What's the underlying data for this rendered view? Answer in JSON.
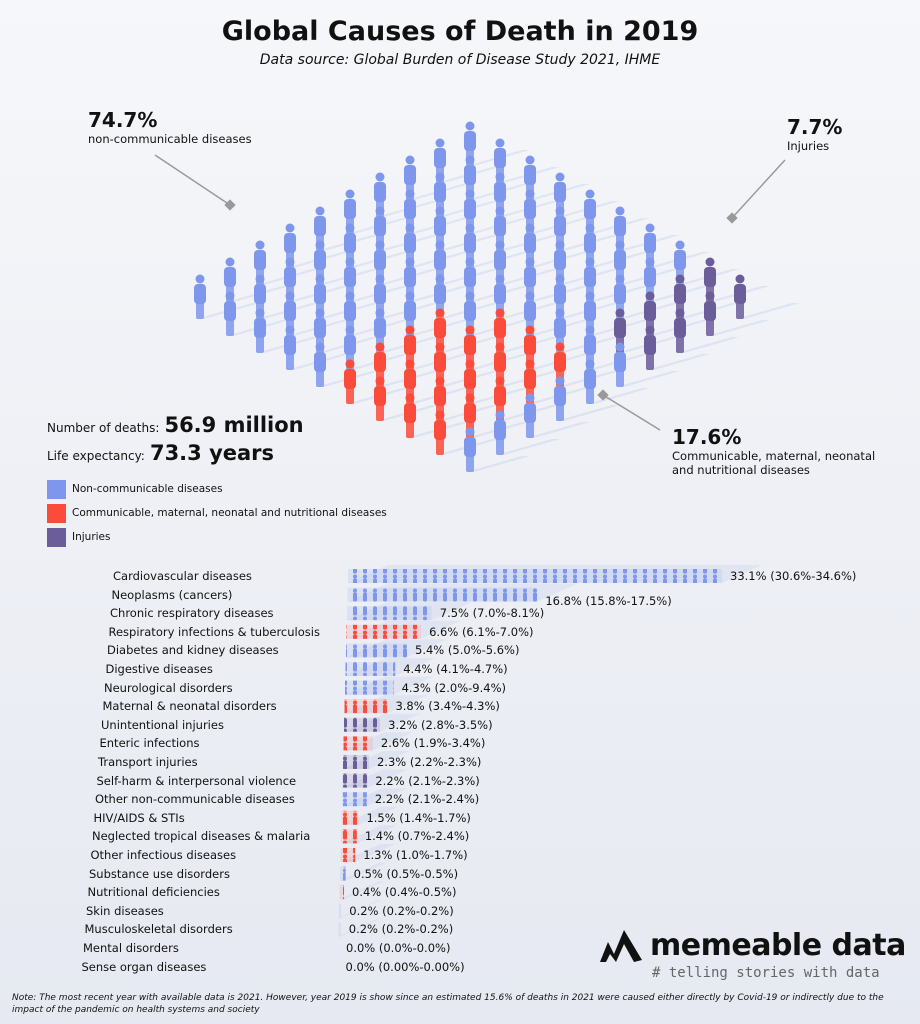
{
  "header": {
    "title": "Global Causes of Death in 2019",
    "subtitle": "Data source: Global Burden of Disease Study 2021, IHME"
  },
  "callouts": {
    "ncd": {
      "percent": "74.7%",
      "label": "non-communicable diseases"
    },
    "injuries": {
      "percent": "7.7%",
      "label": "Injuries"
    },
    "communicable": {
      "percent": "17.6%",
      "label_line1": "Communicable, maternal, neonatal",
      "label_line2": "and nutritional diseases"
    }
  },
  "stats": {
    "deaths_label": "Number of deaths:",
    "deaths_value": "56.9 million",
    "life_label": "Life expectancy:",
    "life_value": "73.3 years"
  },
  "colors": {
    "ncd": "#7e97ec",
    "communicable": "#fb4b3a",
    "injuries": "#6b5c9a"
  },
  "legend": [
    {
      "key": "ncd",
      "label": "Non-communicable diseases"
    },
    {
      "key": "communicable",
      "label": "Communicable, maternal, neonatal and nutritional diseases"
    },
    {
      "key": "injuries",
      "label": "Injuries"
    }
  ],
  "chart_data": [
    {
      "type": "pictogram",
      "description_values": "share of deaths by group",
      "categories": [
        "Non-communicable diseases",
        "Communicable, maternal, neonatal and nutritional diseases",
        "Injuries"
      ],
      "values": [
        74.7,
        17.6,
        7.7
      ]
    },
    {
      "type": "bar",
      "orientation": "horizontal",
      "rows": [
        {
          "label": "Cardiovascular diseases",
          "value": 33.1,
          "text": "33.1% (30.6%-34.6%)",
          "group": "ncd"
        },
        {
          "label": "Neoplasms (cancers)",
          "value": 16.8,
          "text": "16.8% (15.8%-17.5%)",
          "group": "ncd"
        },
        {
          "label": "Chronic respiratory diseases",
          "value": 7.5,
          "text": "7.5% (7.0%-8.1%)",
          "group": "ncd"
        },
        {
          "label": "Respiratory infections & tuberculosis",
          "value": 6.6,
          "text": "6.6% (6.1%-7.0%)",
          "group": "communicable"
        },
        {
          "label": "Diabetes and kidney diseases",
          "value": 5.4,
          "text": "5.4% (5.0%-5.6%)",
          "group": "ncd"
        },
        {
          "label": "Digestive diseases",
          "value": 4.4,
          "text": "4.4% (4.1%-4.7%)",
          "group": "ncd"
        },
        {
          "label": "Neurological disorders",
          "value": 4.3,
          "text": "4.3% (2.0%-9.4%)",
          "group": "ncd"
        },
        {
          "label": "Maternal & neonatal disorders",
          "value": 3.8,
          "text": "3.8% (3.4%-4.3%)",
          "group": "communicable"
        },
        {
          "label": "Unintentional injuries",
          "value": 3.2,
          "text": "3.2% (2.8%-3.5%)",
          "group": "injuries"
        },
        {
          "label": "Enteric infections",
          "value": 2.6,
          "text": "2.6% (1.9%-3.4%)",
          "group": "communicable"
        },
        {
          "label": "Transport injuries",
          "value": 2.3,
          "text": "2.3% (2.2%-2.3%)",
          "group": "injuries"
        },
        {
          "label": "Self-harm & interpersonal violence",
          "value": 2.2,
          "text": "2.2% (2.1%-2.3%)",
          "group": "injuries"
        },
        {
          "label": "Other non-communicable diseases",
          "value": 2.2,
          "text": "2.2% (2.1%-2.4%)",
          "group": "ncd"
        },
        {
          "label": "HIV/AIDS & STIs",
          "value": 1.5,
          "text": "1.5% (1.4%-1.7%)",
          "group": "communicable"
        },
        {
          "label": "Neglected tropical diseases & malaria",
          "value": 1.4,
          "text": "1.4% (0.7%-2.4%)",
          "group": "communicable"
        },
        {
          "label": "Other infectious diseases",
          "value": 1.3,
          "text": "1.3% (1.0%-1.7%)",
          "group": "communicable"
        },
        {
          "label": "Substance use disorders",
          "value": 0.5,
          "text": "0.5% (0.5%-0.5%)",
          "group": "ncd"
        },
        {
          "label": "Nutritional deficiencies",
          "value": 0.4,
          "text": "0.4% (0.4%-0.5%)",
          "group": "communicable"
        },
        {
          "label": "Skin diseases",
          "value": 0.2,
          "text": "0.2% (0.2%-0.2%)",
          "group": "ncd"
        },
        {
          "label": "Musculoskeletal disorders",
          "value": 0.2,
          "text": "0.2% (0.2%-0.2%)",
          "group": "ncd"
        },
        {
          "label": "Mental disorders",
          "value": 0.0,
          "text": "0.0% (0.0%-0.0%)",
          "group": "ncd"
        },
        {
          "label": "Sense organ diseases",
          "value": 0.0,
          "text": "0.0% (0.00%-0.00%)",
          "group": "ncd"
        }
      ]
    }
  ],
  "brand": {
    "name": "memeable data",
    "tagline": "# telling stories with data"
  },
  "note": "Note: The most recent year with available data is 2021. However, year 2019 is show since an estimated 15.6% of deaths in 2021 were caused either directly by Covid-19 or indirectly due to the impact of the pandemic on health systems and society"
}
